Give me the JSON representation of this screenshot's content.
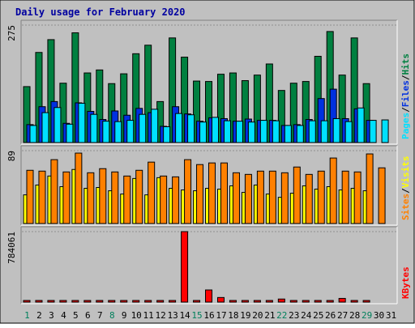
{
  "chart_data": {
    "type": "bar",
    "title": "Daily usage for February 2020",
    "days": [
      "1",
      "2",
      "3",
      "4",
      "5",
      "6",
      "7",
      "8",
      "9",
      "10",
      "11",
      "12",
      "13",
      "14",
      "15",
      "16",
      "17",
      "18",
      "19",
      "20",
      "21",
      "22",
      "23",
      "24",
      "25",
      "26",
      "27",
      "28",
      "29",
      "30",
      "31"
    ],
    "weekend_days": [
      "1",
      "8",
      "15",
      "22",
      "29"
    ],
    "panels": [
      {
        "id": "hits-files-pages",
        "y_max_label": "275",
        "y_max": 275,
        "legend": [
          {
            "label": "Pages",
            "color": "#00e0ff"
          },
          {
            "label": "Files",
            "color": "#0030e0"
          },
          {
            "label": "Hits",
            "color": "#008040"
          }
        ],
        "legend_separator": "/",
        "series": [
          {
            "name": "Hits",
            "color": "#008040",
            "values": [
              131,
              211,
              241,
              139,
              257,
              163,
              170,
              138,
              161,
              208,
              228,
              96,
              245,
              200,
              144,
              143,
              160,
              163,
              145,
              158,
              184,
              122,
              139,
              143,
              202,
              260,
              158,
              245,
              138,
              0,
              0
            ]
          },
          {
            "name": "Files",
            "color": "#0030e0",
            "values": [
              42,
              84,
              96,
              45,
              93,
              73,
              54,
              74,
              64,
              80,
              70,
              38,
              84,
              67,
              50,
              58,
              56,
              50,
              55,
              52,
              52,
              40,
              42,
              54,
              103,
              125,
              56,
              79,
              52,
              0,
              0
            ]
          },
          {
            "name": "Pages",
            "color": "#00e0ff",
            "values": [
              40,
              70,
              82,
              43,
              92,
              66,
              50,
              49,
              52,
              66,
              78,
              37,
              68,
              65,
              48,
              59,
              51,
              50,
              48,
              52,
              51,
              40,
              40,
              51,
              51,
              56,
              49,
              81,
              52,
              53,
              0
            ]
          }
        ]
      },
      {
        "id": "visits-sites",
        "y_max_label": "89",
        "y_max": 89,
        "legend": [
          {
            "label": "Sites",
            "color": "#ff8000"
          },
          {
            "label": "Visits",
            "color": "#ffff00"
          }
        ],
        "legend_separator": "/",
        "series": [
          {
            "name": "Visits",
            "color": "#ffff00",
            "values": [
              35,
              47,
              58,
              45,
              66,
              43,
              44,
              40,
              36,
              55,
              35,
              56,
              43,
              41,
              40,
              43,
              42,
              46,
              38,
              47,
              36,
              32,
              37,
              46,
              42,
              45,
              41,
              43,
              40,
              0,
              0
            ]
          },
          {
            "name": "Sites",
            "color": "#ff8000",
            "values": [
              65,
              64,
              78,
              63,
              86,
              62,
              67,
              63,
              58,
              65,
              75,
              58,
              57,
              78,
              72,
              74,
              74,
              62,
              60,
              64,
              64,
              62,
              69,
              60,
              64,
              80,
              64,
              63,
              85,
              68,
              0
            ]
          }
        ]
      },
      {
        "id": "kbytes",
        "y_max_label": "784061",
        "y_max": 784061,
        "legend": [
          {
            "label": "KBytes",
            "color": "#ff0000"
          }
        ],
        "legend_separator": "",
        "series": [
          {
            "name": "KBytes",
            "color": "#ff0000",
            "values": [
              8000,
              8000,
              7000,
              8000,
              8000,
              8000,
              8000,
              8000,
              8000,
              8000,
              7000,
              8000,
              8000,
              784061,
              7000,
              135000,
              51000,
              8000,
              8000,
              8000,
              9000,
              34000,
              14000,
              9000,
              8000,
              9000,
              41000,
              17000,
              9000,
              0,
              0
            ]
          }
        ]
      }
    ]
  }
}
